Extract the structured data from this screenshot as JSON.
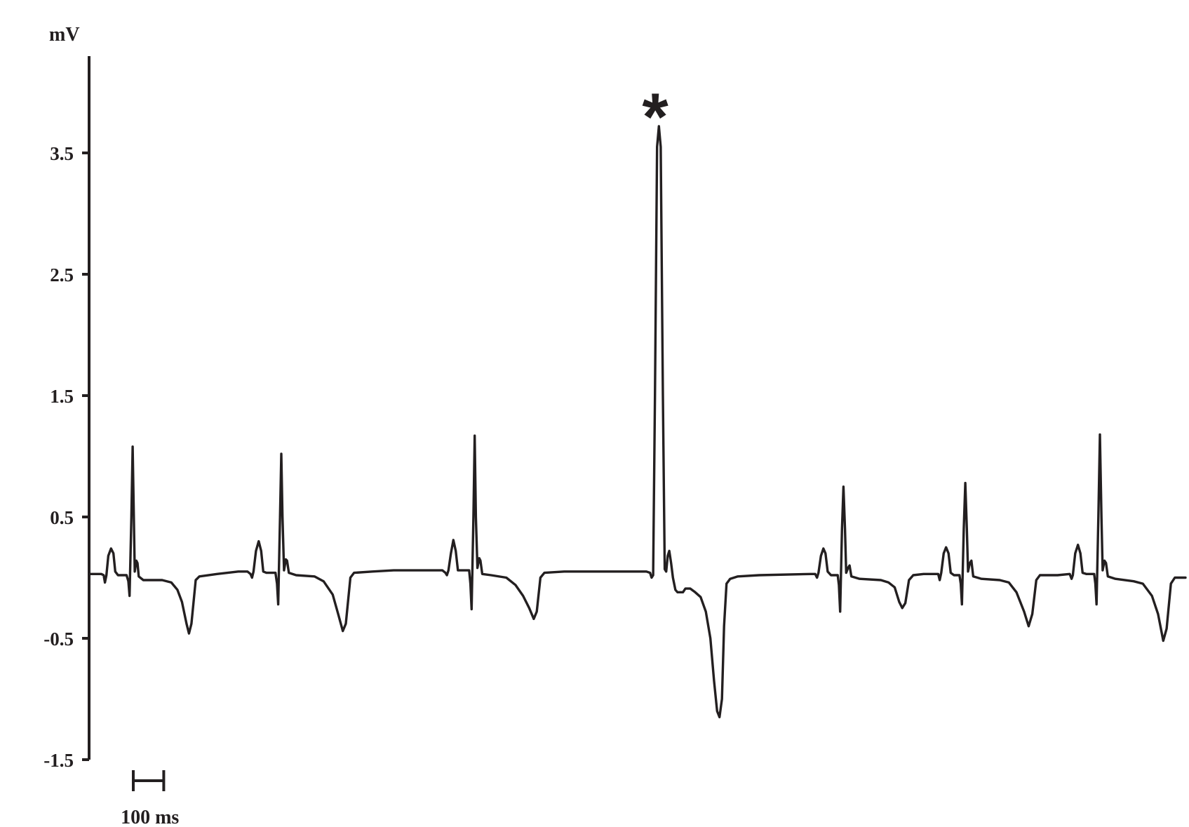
{
  "chart_data": {
    "type": "line",
    "title": "",
    "xlabel": "",
    "ylabel": "mV",
    "ylim": [
      -1.5,
      4.3
    ],
    "yticks": [
      3.5,
      2.5,
      1.5,
      0.5,
      -0.5,
      -1.5
    ],
    "ytick_labels": [
      "3.5",
      "2.5",
      "1.5",
      "0.5",
      "-0.5",
      "-1.5"
    ],
    "grid": false,
    "legend": "none",
    "x_unit": "ms",
    "x_range": [
      0,
      3900
    ],
    "scale_bar": {
      "label": "100 ms",
      "duration_ms": 100
    },
    "annotations": [
      {
        "text": "*",
        "x_ms": 1852,
        "y": 4.0
      }
    ],
    "line_color": "#231f20",
    "series": [
      {
        "values_description_free": true,
        "points": [
          [
            0,
            0.03
          ],
          [
            40,
            0.03
          ],
          [
            48,
            0.02
          ],
          [
            52,
            -0.04
          ],
          [
            57,
            0.02
          ],
          [
            63,
            0.18
          ],
          [
            72,
            0.24
          ],
          [
            80,
            0.2
          ],
          [
            86,
            0.05
          ],
          [
            95,
            0.02
          ],
          [
            123,
            0.02
          ],
          [
            129,
            -0.03
          ],
          [
            133,
            -0.15
          ],
          [
            139,
            0.5
          ],
          [
            143,
            1.08
          ],
          [
            147,
            0.5
          ],
          [
            150,
            0.05
          ],
          [
            155,
            0.14
          ],
          [
            159,
            0.12
          ],
          [
            163,
            0.01
          ],
          [
            178,
            -0.02
          ],
          [
            240,
            -0.02
          ],
          [
            270,
            -0.04
          ],
          [
            290,
            -0.1
          ],
          [
            305,
            -0.2
          ],
          [
            320,
            -0.38
          ],
          [
            328,
            -0.46
          ],
          [
            336,
            -0.38
          ],
          [
            350,
            -0.02
          ],
          [
            362,
            0.01
          ],
          [
            420,
            0.03
          ],
          [
            490,
            0.05
          ],
          [
            520,
            0.05
          ],
          [
            530,
            0.03
          ],
          [
            535,
            0.0
          ],
          [
            540,
            0.05
          ],
          [
            548,
            0.22
          ],
          [
            557,
            0.3
          ],
          [
            565,
            0.22
          ],
          [
            572,
            0.05
          ],
          [
            582,
            0.04
          ],
          [
            612,
            0.04
          ],
          [
            617,
            -0.05
          ],
          [
            621,
            -0.22
          ],
          [
            627,
            0.5
          ],
          [
            631,
            1.02
          ],
          [
            635,
            0.5
          ],
          [
            640,
            0.06
          ],
          [
            646,
            0.15
          ],
          [
            650,
            0.14
          ],
          [
            656,
            0.04
          ],
          [
            680,
            0.02
          ],
          [
            740,
            0.01
          ],
          [
            770,
            -0.03
          ],
          [
            800,
            -0.14
          ],
          [
            818,
            -0.3
          ],
          [
            833,
            -0.44
          ],
          [
            843,
            -0.38
          ],
          [
            858,
            0.0
          ],
          [
            870,
            0.04
          ],
          [
            930,
            0.05
          ],
          [
            1000,
            0.06
          ],
          [
            1160,
            0.06
          ],
          [
            1170,
            0.04
          ],
          [
            1175,
            0.02
          ],
          [
            1180,
            0.06
          ],
          [
            1188,
            0.2
          ],
          [
            1196,
            0.31
          ],
          [
            1204,
            0.22
          ],
          [
            1211,
            0.06
          ],
          [
            1222,
            0.06
          ],
          [
            1248,
            0.06
          ],
          [
            1252,
            -0.05
          ],
          [
            1256,
            -0.26
          ],
          [
            1262,
            0.5
          ],
          [
            1266,
            1.17
          ],
          [
            1270,
            0.5
          ],
          [
            1275,
            0.08
          ],
          [
            1281,
            0.16
          ],
          [
            1285,
            0.14
          ],
          [
            1291,
            0.03
          ],
          [
            1320,
            0.02
          ],
          [
            1370,
            0.0
          ],
          [
            1400,
            -0.06
          ],
          [
            1425,
            -0.15
          ],
          [
            1445,
            -0.25
          ],
          [
            1460,
            -0.34
          ],
          [
            1470,
            -0.28
          ],
          [
            1482,
            0.0
          ],
          [
            1495,
            0.04
          ],
          [
            1560,
            0.05
          ],
          [
            1830,
            0.05
          ],
          [
            1842,
            0.04
          ],
          [
            1847,
            0.0
          ],
          [
            1852,
            0.02
          ],
          [
            1858,
            1.5
          ],
          [
            1865,
            3.55
          ],
          [
            1871,
            3.72
          ],
          [
            1877,
            3.55
          ],
          [
            1884,
            1.5
          ],
          [
            1890,
            0.07
          ],
          [
            1895,
            0.05
          ],
          [
            1900,
            0.18
          ],
          [
            1905,
            0.22
          ],
          [
            1911,
            0.12
          ],
          [
            1917,
            0.0
          ],
          [
            1925,
            -0.1
          ],
          [
            1932,
            -0.12
          ],
          [
            1950,
            -0.12
          ],
          [
            1958,
            -0.09
          ],
          [
            1974,
            -0.09
          ],
          [
            1990,
            -0.12
          ],
          [
            2008,
            -0.16
          ],
          [
            2025,
            -0.28
          ],
          [
            2040,
            -0.5
          ],
          [
            2052,
            -0.85
          ],
          [
            2062,
            -1.1
          ],
          [
            2070,
            -1.15
          ],
          [
            2078,
            -1.0
          ],
          [
            2085,
            -0.4
          ],
          [
            2093,
            -0.05
          ],
          [
            2105,
            -0.01
          ],
          [
            2130,
            0.01
          ],
          [
            2200,
            0.02
          ],
          [
            2370,
            0.03
          ],
          [
            2384,
            0.03
          ],
          [
            2390,
            0.0
          ],
          [
            2395,
            0.04
          ],
          [
            2403,
            0.18
          ],
          [
            2411,
            0.24
          ],
          [
            2418,
            0.2
          ],
          [
            2425,
            0.05
          ],
          [
            2436,
            0.02
          ],
          [
            2458,
            0.02
          ],
          [
            2462,
            -0.06
          ],
          [
            2466,
            -0.28
          ],
          [
            2472,
            0.4
          ],
          [
            2477,
            0.75
          ],
          [
            2482,
            0.4
          ],
          [
            2486,
            0.04
          ],
          [
            2492,
            0.08
          ],
          [
            2497,
            0.1
          ],
          [
            2503,
            0.01
          ],
          [
            2530,
            -0.01
          ],
          [
            2600,
            -0.02
          ],
          [
            2625,
            -0.04
          ],
          [
            2645,
            -0.08
          ],
          [
            2660,
            -0.2
          ],
          [
            2670,
            -0.25
          ],
          [
            2680,
            -0.21
          ],
          [
            2692,
            -0.02
          ],
          [
            2706,
            0.02
          ],
          [
            2740,
            0.03
          ],
          [
            2770,
            0.03
          ],
          [
            2788,
            0.03
          ],
          [
            2793,
            -0.02
          ],
          [
            2798,
            0.04
          ],
          [
            2806,
            0.2
          ],
          [
            2814,
            0.25
          ],
          [
            2822,
            0.2
          ],
          [
            2829,
            0.04
          ],
          [
            2840,
            0.02
          ],
          [
            2858,
            0.02
          ],
          [
            2862,
            -0.05
          ],
          [
            2866,
            -0.22
          ],
          [
            2872,
            0.4
          ],
          [
            2877,
            0.78
          ],
          [
            2882,
            0.4
          ],
          [
            2886,
            0.05
          ],
          [
            2892,
            0.12
          ],
          [
            2897,
            0.14
          ],
          [
            2903,
            0.01
          ],
          [
            2930,
            -0.01
          ],
          [
            2990,
            -0.02
          ],
          [
            3020,
            -0.04
          ],
          [
            3045,
            -0.12
          ],
          [
            3070,
            -0.28
          ],
          [
            3085,
            -0.4
          ],
          [
            3097,
            -0.3
          ],
          [
            3110,
            -0.02
          ],
          [
            3122,
            0.02
          ],
          [
            3180,
            0.02
          ],
          [
            3220,
            0.03
          ],
          [
            3226,
            -0.01
          ],
          [
            3230,
            0.02
          ],
          [
            3238,
            0.2
          ],
          [
            3247,
            0.27
          ],
          [
            3255,
            0.2
          ],
          [
            3262,
            0.04
          ],
          [
            3274,
            0.03
          ],
          [
            3300,
            0.03
          ],
          [
            3304,
            -0.05
          ],
          [
            3308,
            -0.22
          ],
          [
            3314,
            0.5
          ],
          [
            3319,
            1.18
          ],
          [
            3324,
            0.5
          ],
          [
            3328,
            0.06
          ],
          [
            3334,
            0.14
          ],
          [
            3339,
            0.12
          ],
          [
            3345,
            0.01
          ],
          [
            3370,
            -0.01
          ],
          [
            3430,
            -0.03
          ],
          [
            3460,
            -0.05
          ],
          [
            3490,
            -0.15
          ],
          [
            3510,
            -0.3
          ],
          [
            3527,
            -0.52
          ],
          [
            3538,
            -0.42
          ],
          [
            3552,
            -0.05
          ],
          [
            3565,
            0.0
          ],
          [
            3600,
            0.0
          ]
        ]
      }
    ]
  }
}
